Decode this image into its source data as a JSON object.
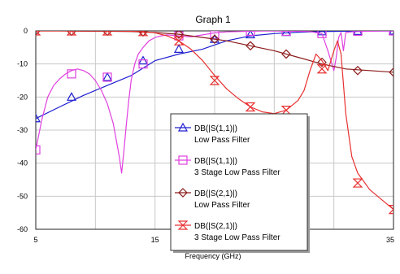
{
  "chart_data": {
    "type": "line",
    "title": "Graph 1",
    "xlabel": "Frequency (GHz)",
    "ylabel": "",
    "xlim": [
      5,
      35
    ],
    "ylim": [
      -60,
      0
    ],
    "x_ticks": [
      5,
      15,
      35
    ],
    "x_tick_labels": [
      "5",
      "15",
      "35"
    ],
    "y_ticks": [
      0,
      -10,
      -20,
      -30,
      -40,
      -50,
      -60
    ],
    "y_tick_labels": [
      "0",
      "-10",
      "-20",
      "-30",
      "-40",
      "-50",
      "-60"
    ],
    "x_gridlines": [
      5,
      10,
      15,
      20,
      25,
      30,
      35
    ],
    "grid": true,
    "legend_position": "center-right",
    "series": [
      {
        "name_line1": "DB(|S(1,1)|)",
        "name_line2": "Low Pass Filter",
        "color": "#1f1fd0",
        "marker": "triangle",
        "x": [
          5,
          7,
          9,
          11,
          13,
          15,
          17,
          19,
          21,
          23,
          25,
          27,
          29,
          31,
          33,
          35
        ],
        "y": [
          -26.5,
          -23,
          -19.5,
          -16.5,
          -13.5,
          -9,
          -7,
          -5.5,
          -3,
          -1.5,
          -0.8,
          -0.4,
          -0.2,
          -0.1,
          -0.05,
          0
        ],
        "marker_x": [
          5,
          8,
          11,
          14,
          17,
          20,
          23,
          26,
          29,
          32,
          35
        ],
        "marker_y": [
          -26.5,
          -20,
          -14,
          -9,
          -5.5,
          -2.5,
          -1.1,
          -0.4,
          -0.2,
          -0.1,
          0
        ]
      },
      {
        "name_line1": "DB(|S(1,1)|)",
        "name_line2": "3 Stage Low Pass Filter",
        "color": "#e040e0",
        "marker": "square",
        "x": [
          5,
          5.5,
          6,
          6.5,
          7,
          7.5,
          8,
          8.5,
          9,
          9.5,
          10,
          10.5,
          11,
          11.5,
          12,
          12.2,
          12.4,
          12.6,
          12.8,
          13,
          13.3,
          13.6,
          14,
          14.5,
          15,
          15.5,
          16,
          17,
          18,
          19,
          20,
          21,
          22,
          23,
          24,
          25,
          26,
          27,
          28,
          29,
          29.5,
          30,
          30.2,
          30.4,
          30.6,
          30.8,
          31,
          31.5,
          32,
          33,
          34,
          35
        ],
        "y": [
          -36,
          -27,
          -20,
          -16.5,
          -14.5,
          -13,
          -12,
          -11.5,
          -12,
          -13,
          -15,
          -18,
          -22,
          -28,
          -38,
          -43,
          -36,
          -28,
          -21,
          -15,
          -10,
          -7,
          -5,
          -3,
          -2,
          -1.5,
          -1.2,
          -1.5,
          -1.8,
          -1.2,
          -0.6,
          -0.3,
          -0.2,
          -0.1,
          -0.05,
          -0.05,
          -0.1,
          -0.1,
          -0.2,
          -0.8,
          -6,
          -12,
          -8,
          -2,
          -0.5,
          -6,
          -0.5,
          -0.3,
          -0.2,
          -0.1,
          -0.05,
          0
        ],
        "marker_x": [
          5,
          8,
          11,
          14,
          17,
          20,
          23,
          26,
          29,
          32,
          35
        ],
        "marker_y": [
          -36,
          -13,
          -14,
          -10,
          -1.5,
          -1.2,
          -0.1,
          -0.1,
          -0.8,
          -0.1,
          0
        ]
      },
      {
        "name_line1": "DB(|S(2,1)|)",
        "name_line2": "Low Pass Filter",
        "color": "#8b1a1a",
        "marker": "diamond",
        "x": [
          5,
          7,
          9,
          11,
          13,
          15,
          17,
          19,
          21,
          23,
          25,
          27,
          29,
          31,
          33,
          35
        ],
        "y": [
          0,
          0,
          -0.1,
          -0.1,
          -0.2,
          -0.5,
          -1,
          -2,
          -3,
          -4.5,
          -6,
          -8,
          -10,
          -11.5,
          -12,
          -12.5
        ],
        "marker_x": [
          5,
          8,
          11,
          14,
          17,
          20,
          23,
          26,
          29,
          32,
          35
        ],
        "marker_y": [
          0,
          -0.1,
          -0.1,
          -0.3,
          -1,
          -2.5,
          -4.5,
          -7,
          -9.5,
          -12,
          -12.5
        ]
      },
      {
        "name_line1": "DB(|S(2,1)|)",
        "name_line2": "3 Stage Low Pass Filter",
        "color": "#e83030",
        "marker": "hourglass",
        "x": [
          5,
          8,
          10,
          12,
          14,
          15,
          16,
          17,
          18,
          19,
          20,
          21,
          22,
          23,
          24,
          25,
          26,
          27,
          27.5,
          28,
          28.5,
          29,
          29.5,
          30,
          30.3,
          30.6,
          31,
          31.5,
          32,
          33,
          34,
          35
        ],
        "y": [
          0,
          0,
          0,
          -0.05,
          -0.2,
          -0.6,
          -1.5,
          -3,
          -5.5,
          -9,
          -13.5,
          -17.5,
          -20.5,
          -23,
          -24.5,
          -25,
          -24,
          -21,
          -18,
          -12,
          -7,
          -9,
          -12,
          -6,
          -3,
          -7,
          -25,
          -38,
          -43,
          -48,
          -51,
          -54
        ],
        "marker_x": [
          5,
          8,
          11,
          14,
          17,
          20,
          23,
          26,
          29,
          32,
          35
        ],
        "marker_y": [
          0,
          0,
          0,
          -0.2,
          -3,
          -15,
          -23,
          -24,
          -11.5,
          -46,
          -54
        ]
      }
    ]
  }
}
